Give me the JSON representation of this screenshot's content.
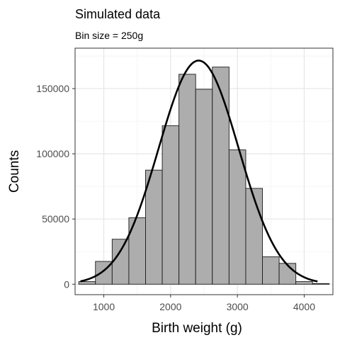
{
  "chart_data": {
    "type": "bar",
    "title": "Simulated data",
    "subtitle": "Bin size = 250g",
    "xlabel": "Birth weight (g)",
    "ylabel": "Counts",
    "xlim": [
      570,
      4430
    ],
    "ylim": [
      -8000,
      181000
    ],
    "x_ticks": [
      1000,
      2000,
      3000,
      4000
    ],
    "y_ticks": [
      0,
      50000,
      100000,
      150000
    ],
    "x_tick_labels": [
      "1000",
      "2000",
      "3000",
      "4000"
    ],
    "y_tick_labels": [
      "0",
      "50000",
      "100000",
      "150000"
    ],
    "grid": true,
    "bin_width": 250,
    "bins": [
      {
        "x_start": 625,
        "x_end": 875,
        "count": 2000
      },
      {
        "x_start": 875,
        "x_end": 1125,
        "count": 17500
      },
      {
        "x_start": 1125,
        "x_end": 1375,
        "count": 34500
      },
      {
        "x_start": 1375,
        "x_end": 1625,
        "count": 51000
      },
      {
        "x_start": 1625,
        "x_end": 1875,
        "count": 87500
      },
      {
        "x_start": 1875,
        "x_end": 2125,
        "count": 121500
      },
      {
        "x_start": 2125,
        "x_end": 2375,
        "count": 161000
      },
      {
        "x_start": 2375,
        "x_end": 2625,
        "count": 149500
      },
      {
        "x_start": 2625,
        "x_end": 2875,
        "count": 166500
      },
      {
        "x_start": 2875,
        "x_end": 3125,
        "count": 103000
      },
      {
        "x_start": 3125,
        "x_end": 3375,
        "count": 73500
      },
      {
        "x_start": 3375,
        "x_end": 3625,
        "count": 21000
      },
      {
        "x_start": 3625,
        "x_end": 3875,
        "count": 16000
      },
      {
        "x_start": 3875,
        "x_end": 4125,
        "count": 2000
      },
      {
        "x_start": 4125,
        "x_end": 4375,
        "count": 500
      }
    ],
    "curve": {
      "type": "normal",
      "peak": 171500,
      "mean": 2420,
      "sd": 600,
      "x_range": [
        650,
        4200
      ]
    },
    "colors": {
      "bar_fill": "#adadad",
      "bar_stroke": "#1a1a1a",
      "curve": "#000000",
      "grid_major": "#e6e6e6",
      "grid_minor": "#f2f2f2",
      "panel_border": "#333333"
    }
  }
}
